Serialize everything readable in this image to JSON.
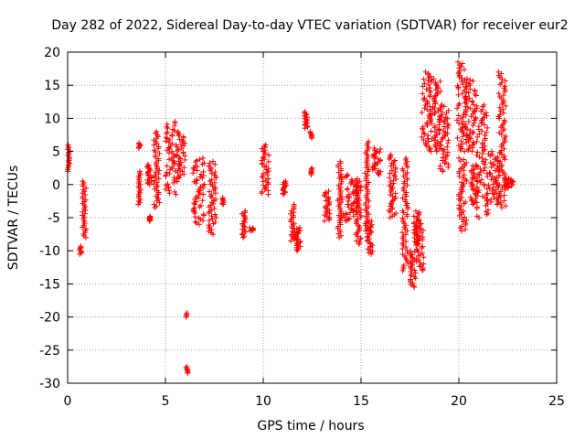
{
  "chart_data": {
    "type": "scatter",
    "title": "Day 282 of 2022, Sidereal Day-to-day VTEC variation (SDTVAR) for receiver eur2",
    "xlabel": "GPS time / hours",
    "ylabel": "SDTVAR / TECUs",
    "xlim": [
      0,
      25
    ],
    "ylim": [
      -30,
      20
    ],
    "xticks": [
      0,
      5,
      10,
      15,
      20,
      25
    ],
    "yticks": [
      -30,
      -25,
      -20,
      -15,
      -10,
      -5,
      0,
      5,
      10,
      15,
      20
    ],
    "grid": true,
    "marker": "+",
    "series": [
      {
        "name": "SDTVAR",
        "color": "#ff0000",
        "clusters": [
          [
            0.0,
            0.15,
            2.0,
            6.0
          ],
          [
            0.6,
            0.72,
            -10.5,
            -9.3
          ],
          [
            0.75,
            0.95,
            -8.0,
            0.5
          ],
          [
            3.62,
            3.72,
            5.5,
            6.3
          ],
          [
            3.6,
            3.75,
            -3.0,
            2.0
          ],
          [
            4.1,
            4.25,
            -5.5,
            -4.8
          ],
          [
            4.05,
            4.3,
            0.0,
            3.0
          ],
          [
            4.4,
            4.7,
            -3.5,
            8.0
          ],
          [
            5.0,
            5.6,
            -1.5,
            9.5
          ],
          [
            5.6,
            6.0,
            1.0,
            8.0
          ],
          [
            6.05,
            6.1,
            -20.0,
            -19.4
          ],
          [
            6.05,
            6.15,
            -28.5,
            -27.5
          ],
          [
            6.4,
            7.0,
            -6.0,
            4.0
          ],
          [
            7.2,
            7.6,
            -7.5,
            3.5
          ],
          [
            7.9,
            8.0,
            -3.0,
            -2.0
          ],
          [
            8.9,
            9.1,
            -8.0,
            -4.0
          ],
          [
            9.3,
            9.5,
            -7.0,
            -6.5
          ],
          [
            9.9,
            10.3,
            -1.5,
            6.0
          ],
          [
            11.0,
            11.2,
            -1.5,
            0.5
          ],
          [
            11.4,
            11.6,
            -8.5,
            -3.0
          ],
          [
            11.6,
            11.9,
            -10.0,
            -6.5
          ],
          [
            12.1,
            12.3,
            8.5,
            11.0
          ],
          [
            12.4,
            12.5,
            1.5,
            2.5
          ],
          [
            12.4,
            12.5,
            7.0,
            8.0
          ],
          [
            13.1,
            13.4,
            -5.5,
            -1.0
          ],
          [
            13.8,
            14.0,
            -8.0,
            3.5
          ],
          [
            14.0,
            14.9,
            -5.5,
            1.5
          ],
          [
            14.7,
            15.0,
            -9.0,
            0.5
          ],
          [
            15.2,
            15.4,
            -7.0,
            6.5
          ],
          [
            15.3,
            15.6,
            -10.5,
            -5.5
          ],
          [
            15.6,
            16.0,
            1.5,
            5.5
          ],
          [
            16.4,
            16.8,
            -5.0,
            4.5
          ],
          [
            17.1,
            17.4,
            -13.0,
            4.0
          ],
          [
            17.5,
            17.8,
            -15.5,
            -10.0
          ],
          [
            17.7,
            18.0,
            -9.0,
            -4.0
          ],
          [
            17.8,
            18.2,
            -13.0,
            -5.5
          ],
          [
            18.1,
            18.6,
            5.0,
            17.0
          ],
          [
            18.6,
            19.1,
            5.0,
            16.0
          ],
          [
            19.0,
            19.5,
            2.0,
            12.0
          ],
          [
            19.9,
            20.4,
            5.0,
            18.5
          ],
          [
            20.0,
            20.4,
            -7.0,
            4.0
          ],
          [
            20.3,
            20.9,
            5.0,
            16.0
          ],
          [
            20.6,
            21.0,
            -3.0,
            3.0
          ],
          [
            20.9,
            21.5,
            -5.0,
            12.0
          ],
          [
            21.5,
            22.1,
            -3.0,
            5.0
          ],
          [
            22.0,
            22.4,
            -3.5,
            17.0
          ],
          [
            22.3,
            22.8,
            -0.5,
            1.0
          ]
        ]
      }
    ]
  }
}
